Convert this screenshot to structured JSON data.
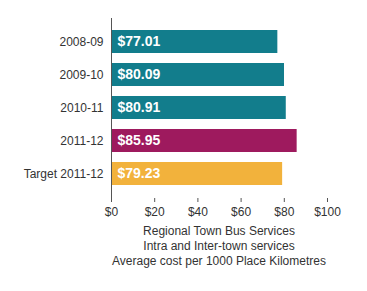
{
  "chart_data": {
    "type": "bar",
    "orientation": "horizontal",
    "categories": [
      "2008-09",
      "2009-10",
      "2010-11",
      "2011-12",
      "Target 2011-12"
    ],
    "values": [
      77.01,
      80.09,
      80.91,
      85.95,
      79.23
    ],
    "value_labels": [
      "$77.01",
      "$80.09",
      "$80.91",
      "$85.95",
      "$79.23"
    ],
    "colors": [
      "#127d8c",
      "#127d8c",
      "#127d8c",
      "#9e1a5e",
      "#f2b23c"
    ],
    "data_labels": true,
    "xlabel": "Regional Town Bus Services\nIntra and Inter-town services\nAverage cost per 1000 Place Kilometres",
    "xlim": [
      0,
      100
    ],
    "xticks": [
      {
        "value": 0,
        "label": "$0"
      },
      {
        "value": 20,
        "label": "$20"
      },
      {
        "value": 40,
        "label": "$40"
      },
      {
        "value": 60,
        "label": "$60"
      },
      {
        "value": 80,
        "label": "$80"
      },
      {
        "value": 100,
        "label": "$100"
      }
    ],
    "grid": false
  }
}
